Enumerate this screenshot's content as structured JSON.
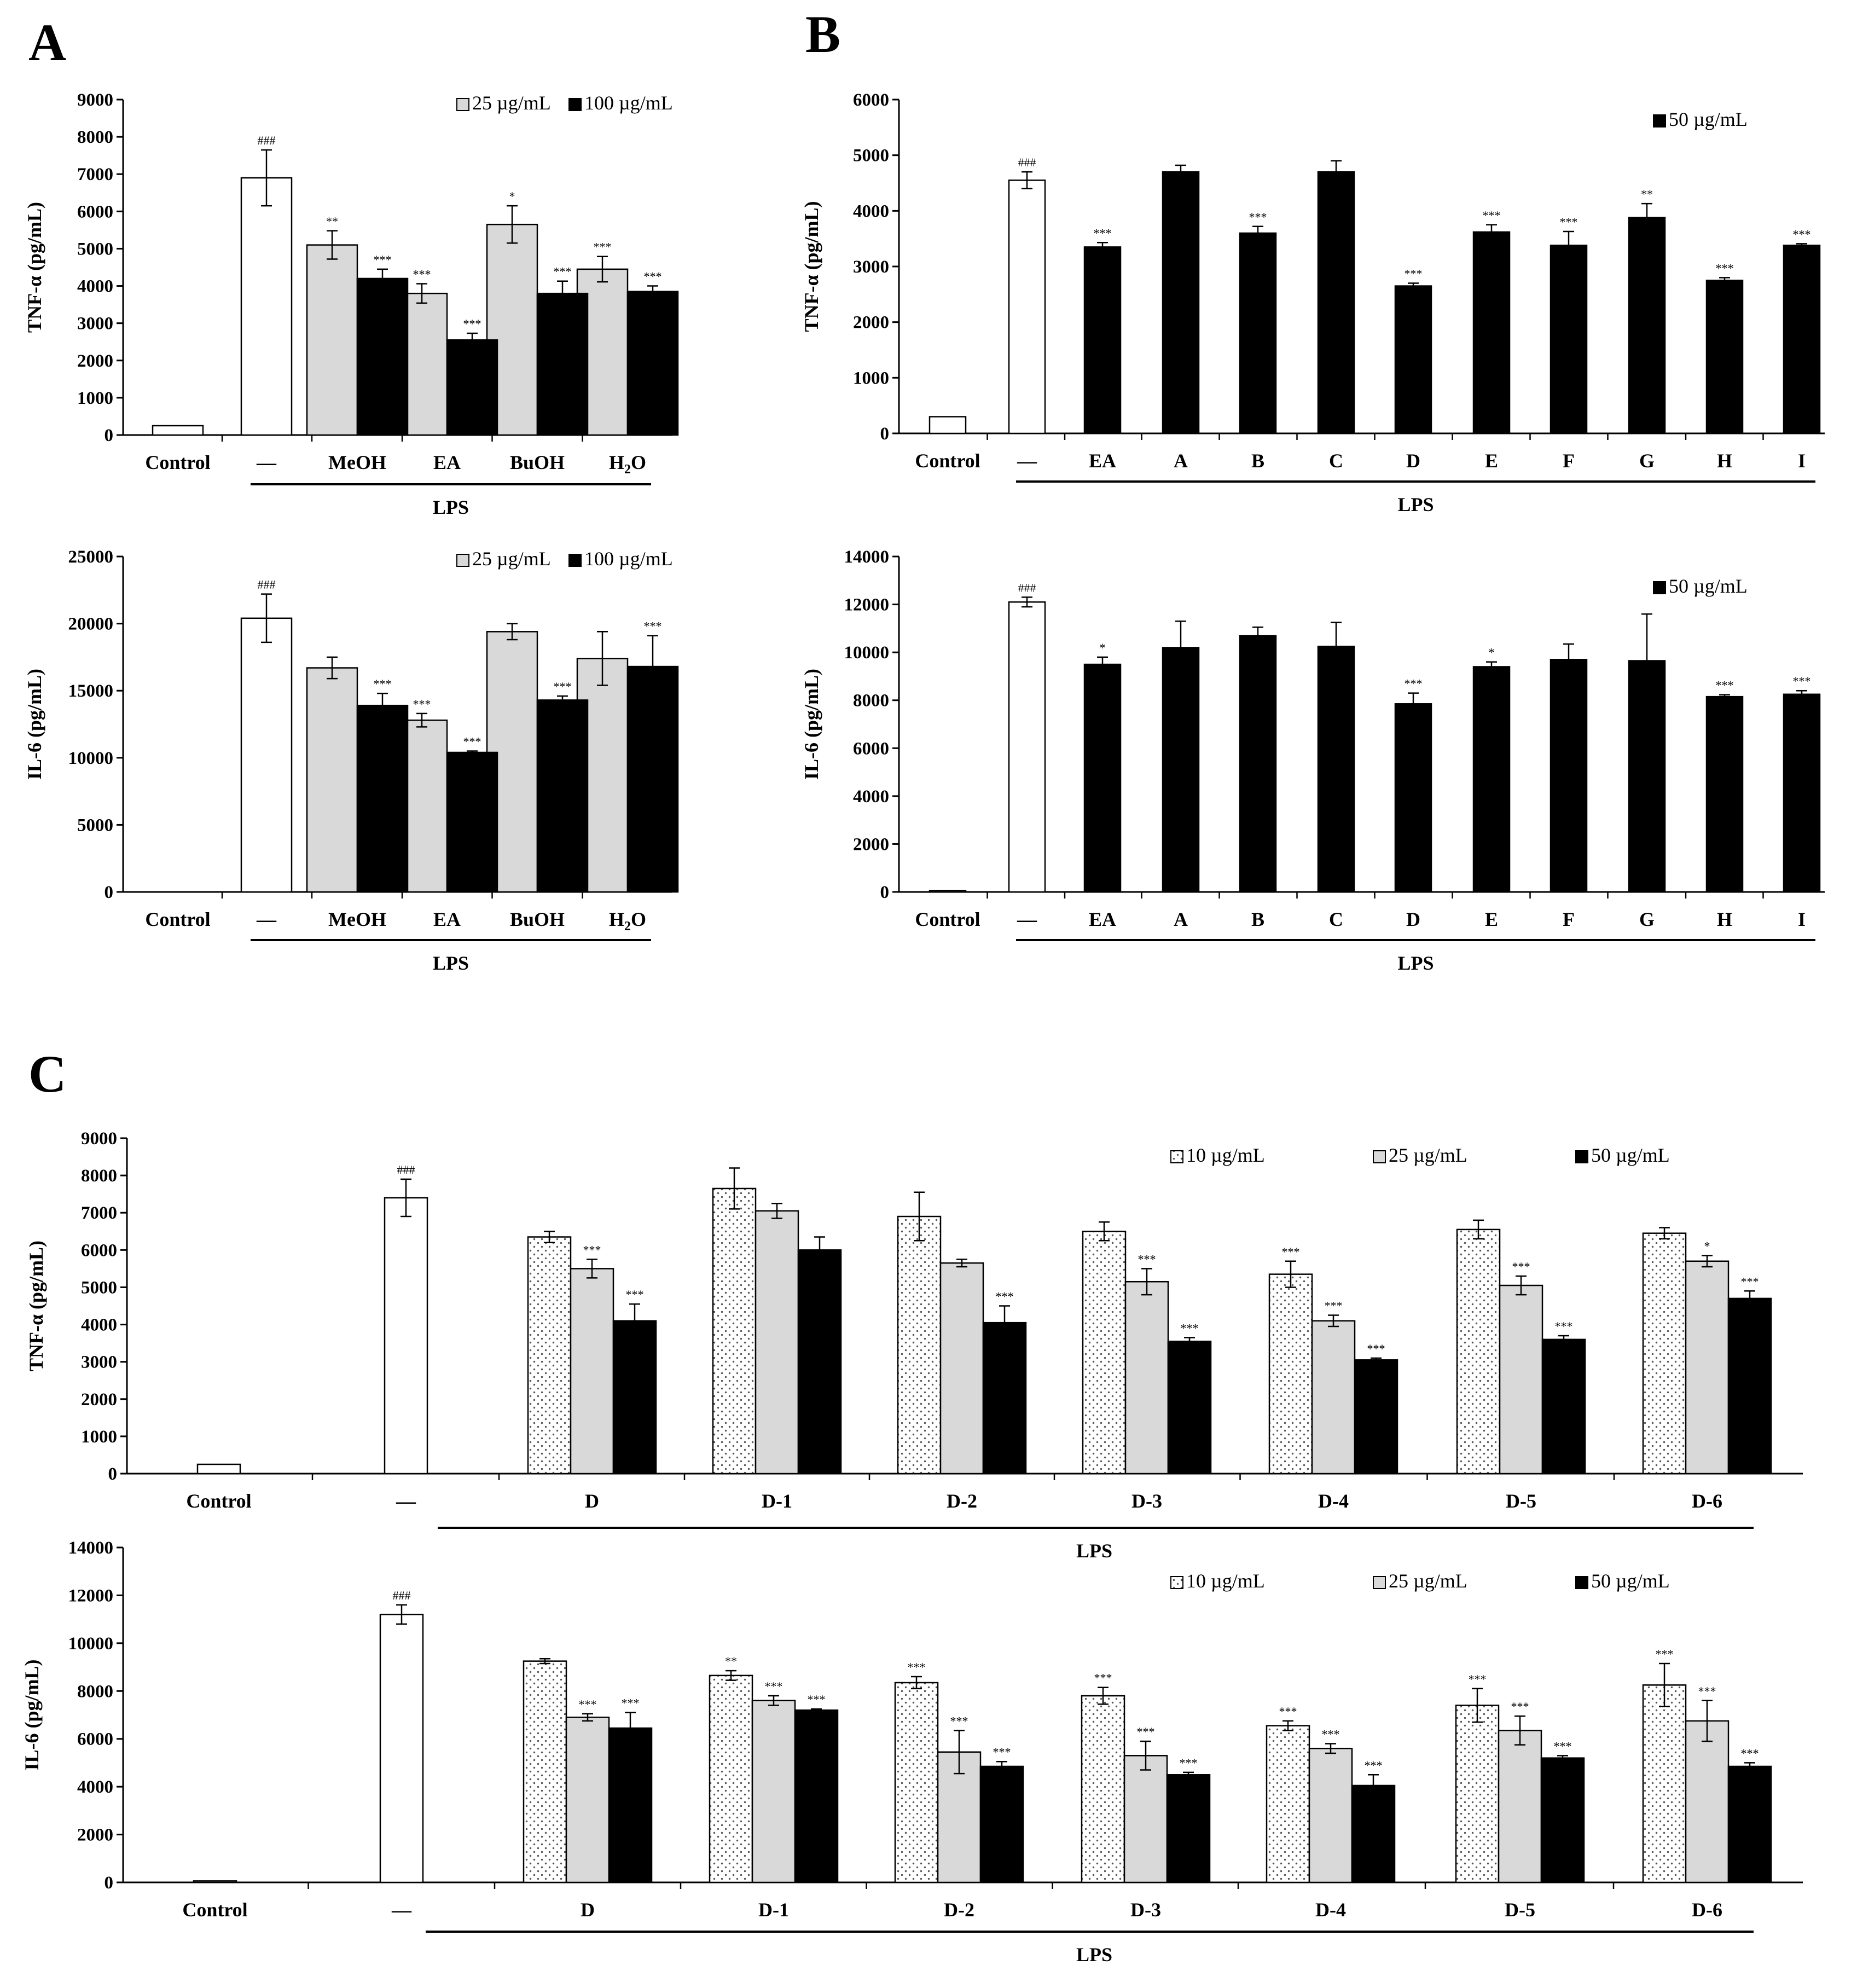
{
  "panels": [
    {
      "letter": "A"
    },
    {
      "letter": "B"
    },
    {
      "letter": "C"
    }
  ],
  "chart_data": [
    {
      "id": "A-top",
      "type": "bar",
      "ylabel": "TNF-α (pg/mL)",
      "ylim": [
        0,
        9000
      ],
      "yticks": [
        0,
        1000,
        2000,
        3000,
        4000,
        5000,
        6000,
        7000,
        8000,
        9000
      ],
      "legend": [
        "25 µg/mL",
        "100 µg/mL"
      ],
      "legend_position": "top-right",
      "group_label": "LPS",
      "categories": [
        "Control",
        "—",
        "MeOH",
        "EA",
        "BuOH",
        "H₂O"
      ],
      "series": [
        {
          "name": "25 µg/mL",
          "style": "grey",
          "values": [
            null,
            null,
            5100,
            3800,
            5650,
            4450
          ],
          "errors": [
            null,
            null,
            380,
            260,
            500,
            340
          ],
          "sig": [
            "",
            "",
            "**",
            "***",
            "*",
            "***"
          ]
        },
        {
          "name": "100 µg/mL",
          "style": "black",
          "values": [
            null,
            null,
            4200,
            2550,
            3800,
            3850
          ],
          "errors": [
            null,
            null,
            250,
            180,
            330,
            150
          ],
          "sig": [
            "",
            "",
            "***",
            "***",
            "***",
            "***"
          ]
        }
      ],
      "singles": [
        {
          "category": "Control",
          "value": 250,
          "error": 0,
          "style": "white",
          "sig": ""
        },
        {
          "category": "—",
          "value": 6900,
          "error": 750,
          "style": "white",
          "sig": "###"
        }
      ]
    },
    {
      "id": "A-bottom",
      "type": "bar",
      "ylabel": "IL-6 (pg/mL)",
      "ylim": [
        0,
        25000
      ],
      "yticks": [
        0,
        5000,
        10000,
        15000,
        20000,
        25000
      ],
      "legend": [
        "25 µg/mL",
        "100 µg/mL"
      ],
      "legend_position": "top-right",
      "group_label": "LPS",
      "categories": [
        "Control",
        "—",
        "MeOH",
        "EA",
        "BuOH",
        "H₂O"
      ],
      "series": [
        {
          "name": "25 µg/mL",
          "style": "grey",
          "values": [
            null,
            null,
            16700,
            12800,
            19400,
            17400
          ],
          "errors": [
            null,
            null,
            800,
            500,
            600,
            2000
          ],
          "sig": [
            "",
            "",
            "",
            "***",
            "",
            ""
          ]
        },
        {
          "name": "100 µg/mL",
          "style": "black",
          "values": [
            null,
            null,
            13900,
            10400,
            14300,
            16800
          ],
          "errors": [
            null,
            null,
            900,
            100,
            300,
            2300
          ],
          "sig": [
            "",
            "",
            "***",
            "***",
            "***",
            "***"
          ]
        }
      ],
      "singles": [
        {
          "category": "Control",
          "value": 0,
          "error": 0,
          "style": "white",
          "sig": ""
        },
        {
          "category": "—",
          "value": 20400,
          "error": 1800,
          "style": "white",
          "sig": "###"
        }
      ]
    },
    {
      "id": "B-top",
      "type": "bar",
      "ylabel": "TNF-α (pg/mL)",
      "ylim": [
        0,
        6000
      ],
      "yticks": [
        0,
        1000,
        2000,
        3000,
        4000,
        5000,
        6000
      ],
      "legend": [
        "50 µg/mL"
      ],
      "legend_position": "top-right",
      "group_label": "LPS",
      "categories": [
        "Control",
        "—",
        "EA",
        "A",
        "B",
        "C",
        "D",
        "E",
        "F",
        "G",
        "H",
        "I"
      ],
      "bars": [
        {
          "value": 300,
          "error": 0,
          "style": "white",
          "sig": ""
        },
        {
          "value": 4550,
          "error": 150,
          "style": "white",
          "sig": "###"
        },
        {
          "value": 3350,
          "error": 80,
          "style": "black",
          "sig": "***"
        },
        {
          "value": 4700,
          "error": 120,
          "style": "black",
          "sig": ""
        },
        {
          "value": 3600,
          "error": 120,
          "style": "black",
          "sig": "***"
        },
        {
          "value": 4700,
          "error": 200,
          "style": "black",
          "sig": ""
        },
        {
          "value": 2650,
          "error": 50,
          "style": "black",
          "sig": "***"
        },
        {
          "value": 3620,
          "error": 130,
          "style": "black",
          "sig": "***"
        },
        {
          "value": 3380,
          "error": 250,
          "style": "black",
          "sig": "***"
        },
        {
          "value": 3880,
          "error": 250,
          "style": "black",
          "sig": "**"
        },
        {
          "value": 2750,
          "error": 50,
          "style": "black",
          "sig": "***"
        },
        {
          "value": 3380,
          "error": 30,
          "style": "black",
          "sig": "***"
        }
      ]
    },
    {
      "id": "B-bottom",
      "type": "bar",
      "ylabel": "IL-6 (pg/mL)",
      "ylim": [
        0,
        14000
      ],
      "yticks": [
        0,
        2000,
        4000,
        6000,
        8000,
        10000,
        12000,
        14000
      ],
      "legend": [
        "50 µg/mL"
      ],
      "legend_position": "top-right",
      "group_label": "LPS",
      "categories": [
        "Control",
        "—",
        "EA",
        "A",
        "B",
        "C",
        "D",
        "E",
        "F",
        "G",
        "H",
        "I"
      ],
      "bars": [
        {
          "value": 60,
          "error": 0,
          "style": "white",
          "sig": ""
        },
        {
          "value": 12100,
          "error": 200,
          "style": "white",
          "sig": "###"
        },
        {
          "value": 9500,
          "error": 300,
          "style": "black",
          "sig": "*"
        },
        {
          "value": 10200,
          "error": 1100,
          "style": "black",
          "sig": ""
        },
        {
          "value": 10700,
          "error": 350,
          "style": "black",
          "sig": ""
        },
        {
          "value": 10250,
          "error": 1000,
          "style": "black",
          "sig": ""
        },
        {
          "value": 7850,
          "error": 450,
          "style": "black",
          "sig": "***"
        },
        {
          "value": 9400,
          "error": 200,
          "style": "black",
          "sig": "*"
        },
        {
          "value": 9700,
          "error": 650,
          "style": "black",
          "sig": ""
        },
        {
          "value": 9650,
          "error": 1950,
          "style": "black",
          "sig": ""
        },
        {
          "value": 8150,
          "error": 80,
          "style": "black",
          "sig": "***"
        },
        {
          "value": 8250,
          "error": 150,
          "style": "black",
          "sig": "***"
        }
      ]
    },
    {
      "id": "C-top",
      "type": "bar",
      "ylabel": "TNF-α (pg/mL)",
      "ylim": [
        0,
        9000
      ],
      "yticks": [
        0,
        1000,
        2000,
        3000,
        4000,
        5000,
        6000,
        7000,
        8000,
        9000
      ],
      "legend": [
        "10 µg/mL",
        "25 µg/mL",
        "50 µg/mL"
      ],
      "legend_position": "top-right",
      "group_label": "LPS",
      "categories": [
        "Control",
        "—",
        "D",
        "D-1",
        "D-2",
        "D-3",
        "D-4",
        "D-5",
        "D-6"
      ],
      "series": [
        {
          "name": "10 µg/mL",
          "style": "dotted",
          "values": [
            null,
            null,
            6350,
            7650,
            6900,
            6500,
            5350,
            6550,
            6450
          ],
          "errors": [
            null,
            null,
            150,
            550,
            650,
            250,
            350,
            250,
            150
          ],
          "sig": [
            "",
            "",
            "",
            "",
            "",
            "",
            "***",
            "",
            ""
          ]
        },
        {
          "name": "25 µg/mL",
          "style": "grey",
          "values": [
            null,
            null,
            5500,
            7050,
            5650,
            5150,
            4100,
            5050,
            5700
          ],
          "errors": [
            null,
            null,
            250,
            200,
            100,
            350,
            150,
            250,
            150
          ],
          "sig": [
            "",
            "",
            "***",
            "",
            "",
            "***",
            "***",
            "***",
            "*"
          ]
        },
        {
          "name": "50 µg/mL",
          "style": "black",
          "values": [
            null,
            null,
            4100,
            6000,
            4050,
            3550,
            3050,
            3600,
            4700
          ],
          "errors": [
            null,
            null,
            450,
            350,
            450,
            100,
            50,
            100,
            200
          ],
          "sig": [
            "",
            "",
            "***",
            "",
            "***",
            "***",
            "***",
            "***",
            "***"
          ]
        }
      ],
      "singles": [
        {
          "category": "Control",
          "value": 250,
          "error": 0,
          "style": "white",
          "sig": ""
        },
        {
          "category": "—",
          "value": 7400,
          "error": 500,
          "style": "white",
          "sig": "###"
        }
      ]
    },
    {
      "id": "C-bottom",
      "type": "bar",
      "ylabel": "IL-6 (pg/mL)",
      "ylim": [
        0,
        14000
      ],
      "yticks": [
        0,
        2000,
        4000,
        6000,
        8000,
        10000,
        12000,
        14000
      ],
      "legend": [
        "10 µg/mL",
        "25 µg/mL",
        "50 µg/mL"
      ],
      "legend_position": "top-right",
      "group_label": "LPS",
      "categories": [
        "Control",
        "—",
        "D",
        "D-1",
        "D-2",
        "D-3",
        "D-4",
        "D-5",
        "D-6"
      ],
      "series": [
        {
          "name": "10 µg/mL",
          "style": "dotted",
          "values": [
            null,
            null,
            9250,
            8650,
            8350,
            7800,
            6550,
            7400,
            8250
          ],
          "errors": [
            null,
            null,
            100,
            200,
            250,
            350,
            200,
            700,
            900
          ],
          "sig": [
            "",
            "",
            "",
            "**",
            "***",
            "***",
            "***",
            "***",
            "***"
          ]
        },
        {
          "name": "25 µg/mL",
          "style": "grey",
          "values": [
            null,
            null,
            6900,
            7600,
            5450,
            5300,
            5600,
            6350,
            6750
          ],
          "errors": [
            null,
            null,
            150,
            200,
            900,
            600,
            200,
            600,
            850
          ],
          "sig": [
            "",
            "",
            "***",
            "***",
            "***",
            "***",
            "***",
            "***",
            "***"
          ]
        },
        {
          "name": "50 µg/mL",
          "style": "black",
          "values": [
            null,
            null,
            6450,
            7200,
            4850,
            4500,
            4050,
            5200,
            4850
          ],
          "errors": [
            null,
            null,
            650,
            50,
            200,
            100,
            450,
            100,
            150
          ],
          "sig": [
            "",
            "",
            "***",
            "***",
            "***",
            "***",
            "***",
            "***",
            "***"
          ]
        }
      ],
      "singles": [
        {
          "category": "Control",
          "value": 60,
          "error": 0,
          "style": "white",
          "sig": ""
        },
        {
          "category": "—",
          "value": 11200,
          "error": 400,
          "style": "white",
          "sig": "###"
        }
      ]
    }
  ]
}
